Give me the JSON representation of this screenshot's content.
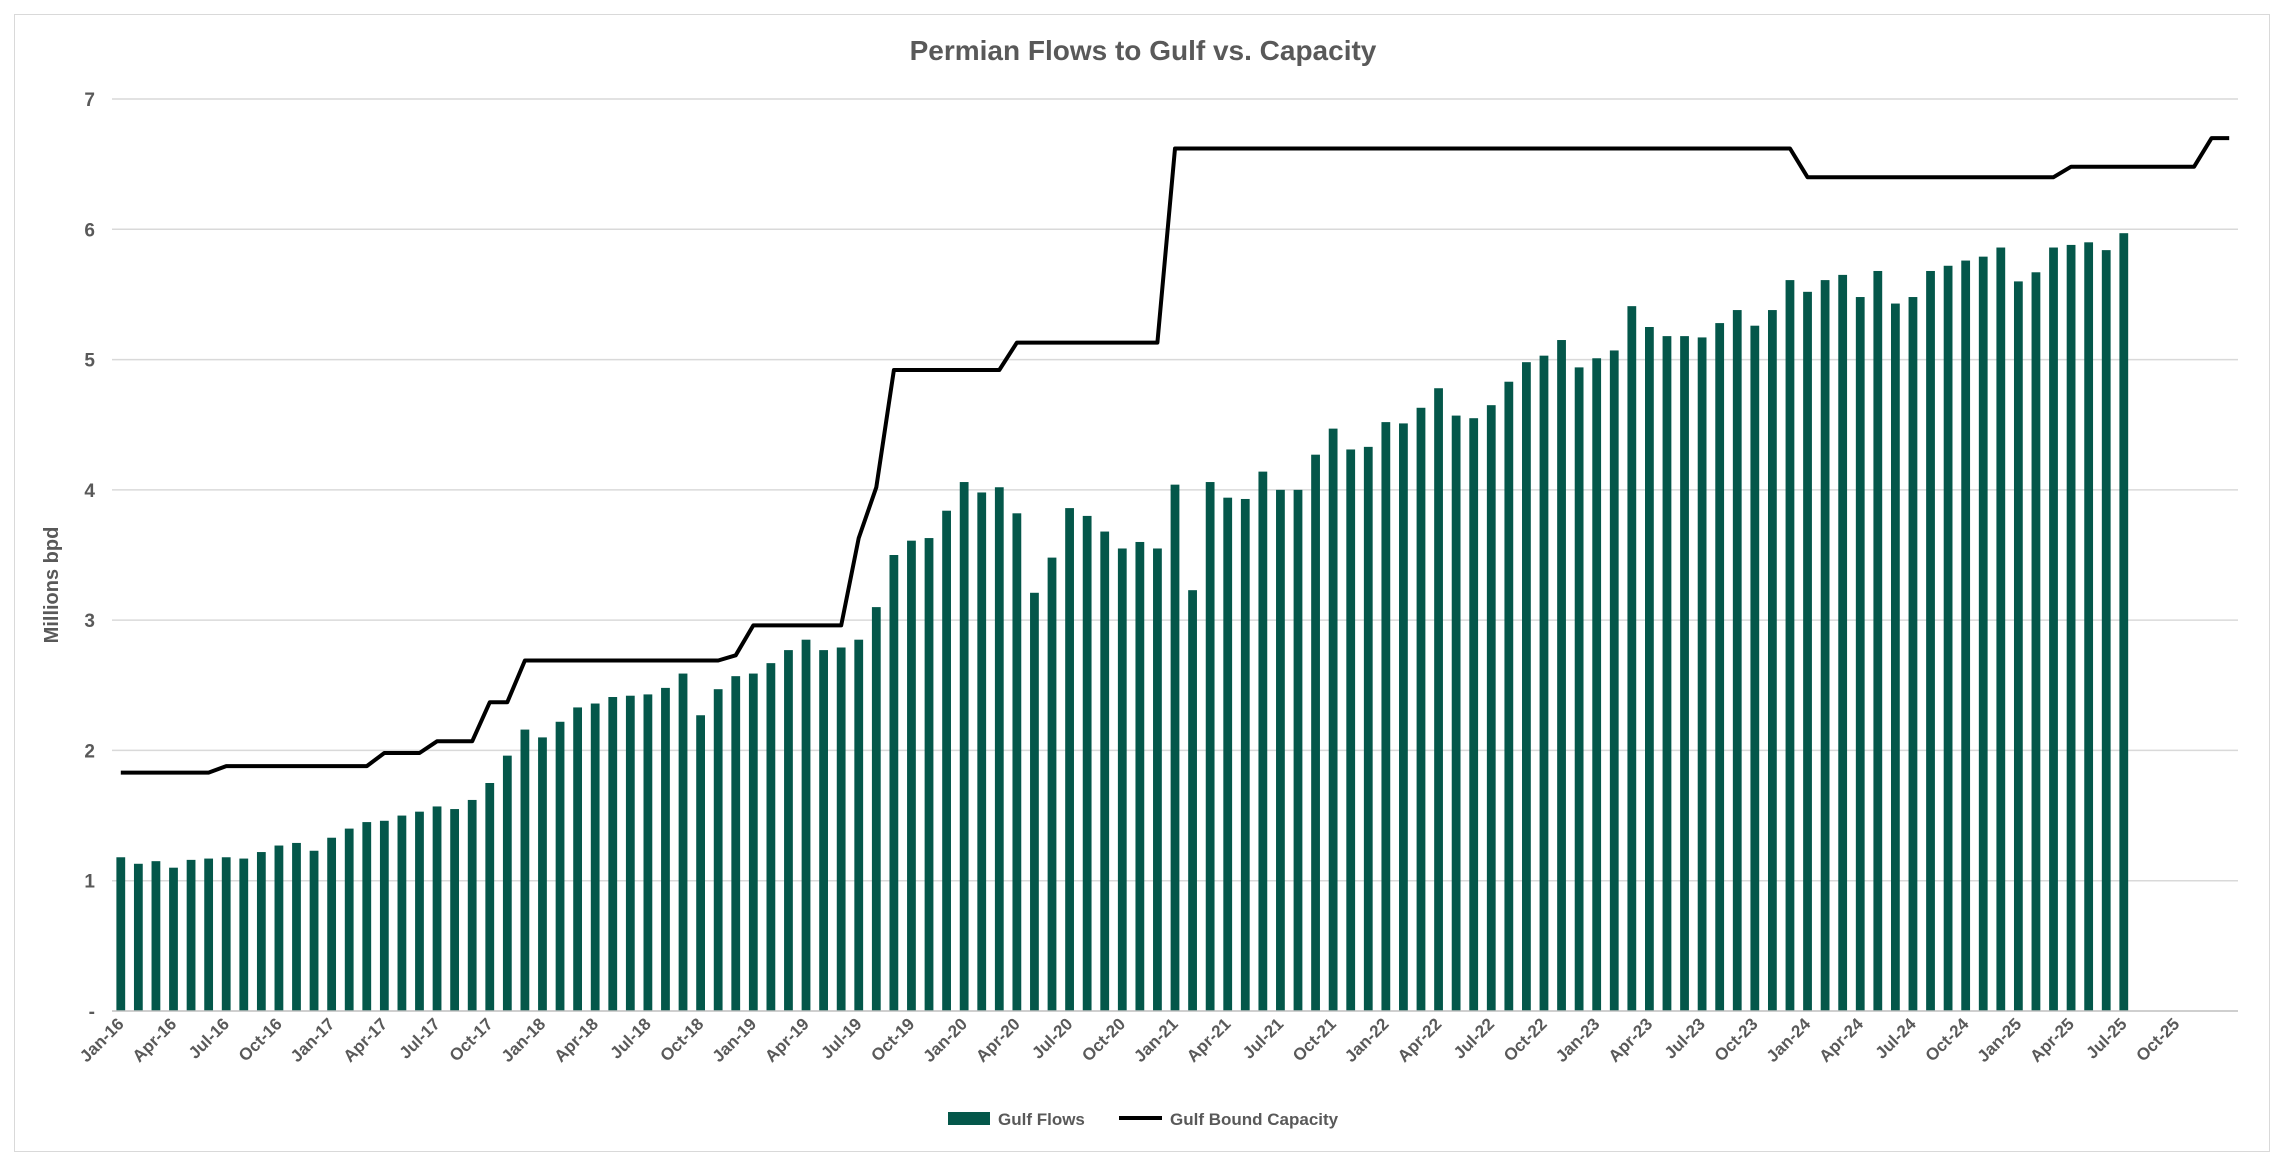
{
  "chart_data": {
    "type": "bar",
    "title": "Permian Flows to Gulf vs. Capacity",
    "xlabel": "",
    "ylabel": "Millions bpd",
    "ylim": [
      0,
      7
    ],
    "y_ticks": [
      "-",
      "1",
      "2",
      "3",
      "4",
      "5",
      "6",
      "7"
    ],
    "grid": true,
    "legend_position": "bottom",
    "bar_color": "#04574a",
    "line_color": "#000000",
    "grid_color": "#d9d9d9",
    "text_color": "#595959",
    "x_start": "Jan-16",
    "x_tick_labels": [
      "Jan-16",
      "Apr-16",
      "Jul-16",
      "Oct-16",
      "Jan-17",
      "Apr-17",
      "Jul-17",
      "Oct-17",
      "Jan-18",
      "Apr-18",
      "Jul-18",
      "Oct-18",
      "Jan-19",
      "Apr-19",
      "Jul-19",
      "Oct-19",
      "Jan-20",
      "Apr-20",
      "Jul-20",
      "Oct-20",
      "Jan-21",
      "Apr-21",
      "Jul-21",
      "Oct-21",
      "Jan-22",
      "Apr-22",
      "Jul-22",
      "Oct-22",
      "Jan-23",
      "Apr-23",
      "Jul-23",
      "Oct-23",
      "Jan-24",
      "Apr-24",
      "Jul-24",
      "Oct-24",
      "Jan-25",
      "Apr-25",
      "Jul-25",
      "Oct-25"
    ],
    "series": [
      {
        "name": "Gulf Flows",
        "type": "bar",
        "values": [
          1.18,
          1.13,
          1.15,
          1.1,
          1.16,
          1.17,
          1.18,
          1.17,
          1.22,
          1.27,
          1.29,
          1.23,
          1.33,
          1.4,
          1.45,
          1.46,
          1.5,
          1.53,
          1.57,
          1.55,
          1.62,
          1.75,
          1.96,
          2.16,
          2.1,
          2.22,
          2.33,
          2.36,
          2.41,
          2.42,
          2.43,
          2.48,
          2.59,
          2.27,
          2.47,
          2.57,
          2.59,
          2.67,
          2.77,
          2.85,
          2.77,
          2.79,
          2.85,
          3.1,
          3.5,
          3.61,
          3.63,
          3.84,
          4.06,
          3.98,
          4.02,
          3.82,
          3.21,
          3.48,
          3.86,
          3.8,
          3.68,
          3.55,
          3.6,
          3.55,
          4.04,
          3.23,
          4.06,
          3.94,
          3.93,
          4.14,
          4.0,
          4.0,
          4.27,
          4.47,
          4.31,
          4.33,
          4.52,
          4.51,
          4.63,
          4.78,
          4.57,
          4.55,
          4.65,
          4.83,
          4.98,
          5.03,
          5.15,
          4.94,
          5.01,
          5.07,
          5.41,
          5.25,
          5.18,
          5.18,
          5.17,
          5.28,
          5.38,
          5.26,
          5.38,
          5.61,
          5.52,
          5.61,
          5.65,
          5.48,
          5.68,
          5.43,
          5.48,
          5.68,
          5.72,
          5.76,
          5.79,
          5.86,
          5.6,
          5.67,
          5.86,
          5.88,
          5.9,
          5.84,
          5.97
        ]
      },
      {
        "name": "Gulf Bound Capacity",
        "type": "line",
        "values": [
          1.83,
          1.83,
          1.83,
          1.83,
          1.83,
          1.83,
          1.88,
          1.88,
          1.88,
          1.88,
          1.88,
          1.88,
          1.88,
          1.88,
          1.88,
          1.98,
          1.98,
          1.98,
          2.07,
          2.07,
          2.07,
          2.37,
          2.37,
          2.69,
          2.69,
          2.69,
          2.69,
          2.69,
          2.69,
          2.69,
          2.69,
          2.69,
          2.69,
          2.69,
          2.69,
          2.73,
          2.96,
          2.96,
          2.96,
          2.96,
          2.96,
          2.96,
          3.63,
          4.02,
          4.92,
          4.92,
          4.92,
          4.92,
          4.92,
          4.92,
          4.92,
          5.13,
          5.13,
          5.13,
          5.13,
          5.13,
          5.13,
          5.13,
          5.13,
          5.13,
          6.62,
          6.62,
          6.62,
          6.62,
          6.62,
          6.62,
          6.62,
          6.62,
          6.62,
          6.62,
          6.62,
          6.62,
          6.62,
          6.62,
          6.62,
          6.62,
          6.62,
          6.62,
          6.62,
          6.62,
          6.62,
          6.62,
          6.62,
          6.62,
          6.62,
          6.62,
          6.62,
          6.62,
          6.62,
          6.62,
          6.62,
          6.62,
          6.62,
          6.62,
          6.62,
          6.62,
          6.4,
          6.4,
          6.4,
          6.4,
          6.4,
          6.4,
          6.4,
          6.4,
          6.4,
          6.4,
          6.4,
          6.4,
          6.4,
          6.4,
          6.4,
          6.48,
          6.48,
          6.48,
          6.48,
          6.48,
          6.48,
          6.48,
          6.48,
          6.7,
          6.7
        ]
      }
    ]
  }
}
